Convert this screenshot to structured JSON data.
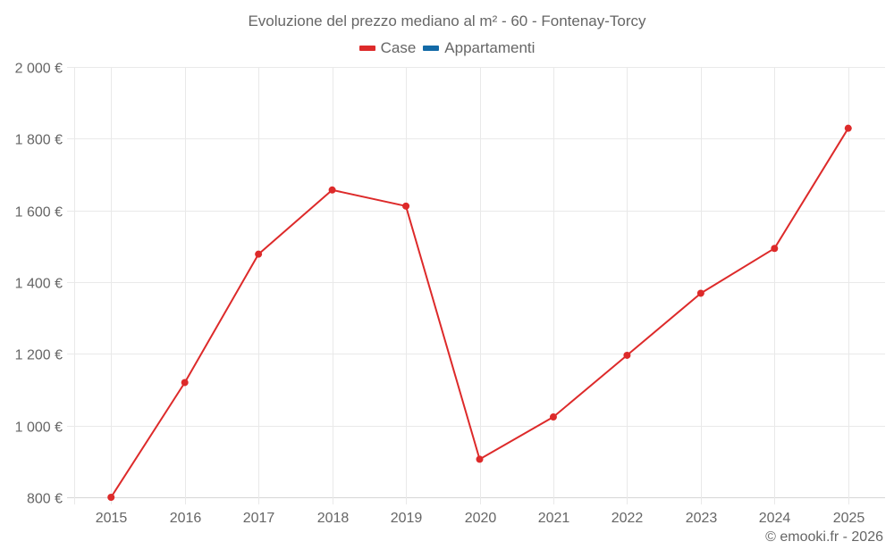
{
  "title": "Evoluzione del prezzo mediano al m² - 60 - Fontenay-Torcy",
  "legend": [
    {
      "label": "Case",
      "color": "#dd2a2a"
    },
    {
      "label": "Appartamenti",
      "color": "#136aa7"
    }
  ],
  "credit": "© emooki.fr - 2026",
  "colors": {
    "line": "#dd2a2a",
    "grid": "#e9e9e9",
    "axis": "#d6d6d6",
    "text": "#666666"
  },
  "chart_data": {
    "type": "line",
    "title": "Evoluzione del prezzo mediano al m² - 60 - Fontenay-Torcy",
    "xlabel": "",
    "ylabel": "",
    "categories": [
      "2015",
      "2016",
      "2017",
      "2018",
      "2019",
      "2020",
      "2021",
      "2022",
      "2023",
      "2024",
      "2025"
    ],
    "series": [
      {
        "name": "Case",
        "color": "#dd2a2a",
        "values": [
          800,
          1120,
          1478,
          1657,
          1612,
          906,
          1024,
          1196,
          1369,
          1494,
          1829
        ]
      },
      {
        "name": "Appartamenti",
        "color": "#136aa7",
        "values": []
      }
    ],
    "ylim": [
      800,
      2000
    ],
    "yticks": [
      800,
      1000,
      1200,
      1400,
      1600,
      1800,
      2000
    ],
    "ytick_labels": [
      "800 €",
      "1 000 €",
      "1 200 €",
      "1 400 €",
      "1 600 €",
      "1 800 €",
      "2 000 €"
    ],
    "grid": true,
    "legend_position": "top"
  }
}
